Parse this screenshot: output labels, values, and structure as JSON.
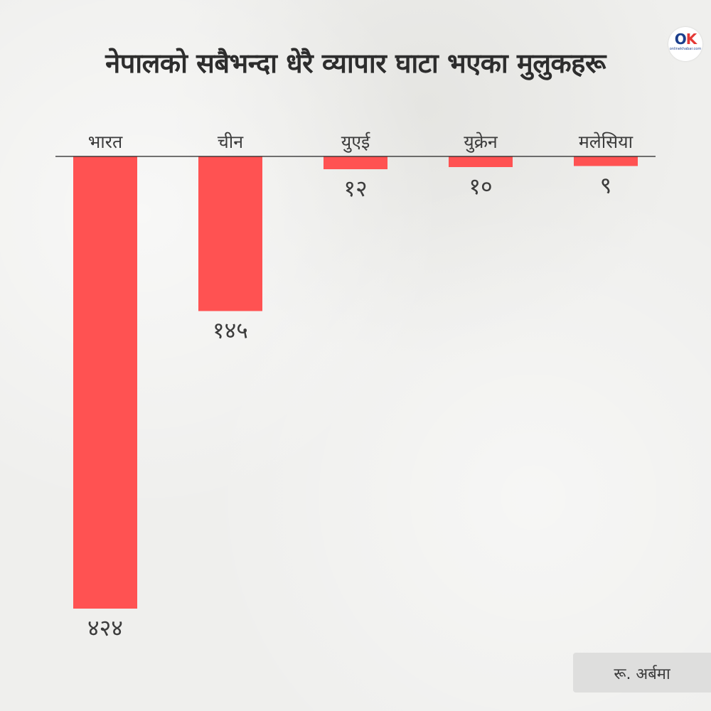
{
  "title": "नेपालको सबैभन्दा धेरै व्यापार घाटा भएका मुलुकहरू",
  "logo": {
    "text_o": "O",
    "text_k": "K",
    "tagline": "onlinekhabar.com"
  },
  "unit_note": "रू. अर्बमा",
  "colors": {
    "bar": "#ff5252",
    "baseline": "#222222",
    "text": "#3c3c3c"
  },
  "chart_data": {
    "type": "bar",
    "orientation": "downward",
    "categories": [
      "भारत",
      "चीन",
      "युएई",
      "युक्रेन",
      "मलेसिया"
    ],
    "values": [
      424,
      145,
      12,
      10,
      9
    ],
    "value_labels": [
      "४२४",
      "१४५",
      "१२",
      "१०",
      "९"
    ],
    "ylim": [
      0,
      424
    ],
    "grid": false,
    "legend": "none"
  }
}
